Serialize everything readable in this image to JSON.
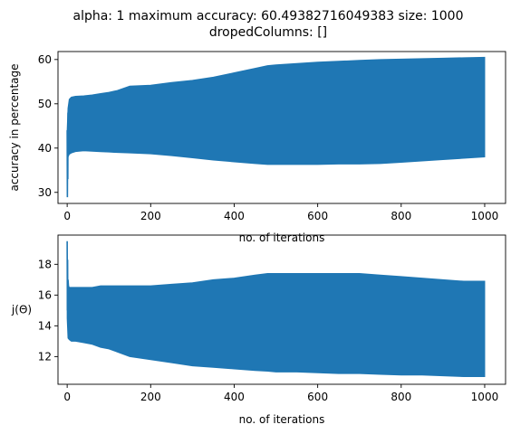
{
  "figure": {
    "title_line1": "alpha: 1 maximum accuracy: 60.49382716049383 size: 1000",
    "title_line2": "dropedColumns: []"
  },
  "chart_data": [
    {
      "type": "line",
      "series_color": "#1f77b4",
      "xlabel": "no. of iterations",
      "ylabel": "accuracy in percentage",
      "xlim": [
        -22,
        1050
      ],
      "ylim": [
        27.5,
        61.8
      ],
      "xticks": [
        0,
        200,
        400,
        600,
        800,
        1000
      ],
      "yticks": [
        30,
        40,
        50,
        60
      ],
      "grid": false,
      "envelope": {
        "x": [
          0,
          2,
          5,
          10,
          20,
          40,
          60,
          80,
          100,
          120,
          150,
          200,
          250,
          300,
          350,
          400,
          450,
          480,
          500,
          550,
          600,
          650,
          700,
          750,
          800,
          850,
          900,
          950,
          1000
        ],
        "upper": [
          44,
          49,
          51,
          51.5,
          51.7,
          51.8,
          52,
          52.3,
          52.6,
          53,
          54,
          54.2,
          54.8,
          55.3,
          56,
          57,
          58,
          58.6,
          58.8,
          59.1,
          59.4,
          59.6,
          59.8,
          60,
          60.1,
          60.2,
          60.3,
          60.4,
          60.5
        ],
        "lower": [
          40,
          38,
          38.6,
          38.9,
          39.2,
          39.4,
          39.3,
          39.2,
          39.1,
          39,
          38.9,
          38.7,
          38.3,
          37.8,
          37.3,
          36.9,
          36.5,
          36.3,
          36.3,
          36.3,
          36.3,
          36.4,
          36.4,
          36.5,
          36.8,
          37.1,
          37.4,
          37.7,
          38
        ]
      },
      "initial_spike": {
        "x": [
          0,
          0.5,
          1,
          1.5,
          2
        ],
        "y": [
          44,
          28.9,
          41,
          33,
          48
        ]
      }
    },
    {
      "type": "line",
      "series_color": "#1f77b4",
      "xlabel": "no. of iterations",
      "ylabel": "j(Θ)",
      "xlim": [
        -22,
        1050
      ],
      "ylim": [
        10.2,
        19.9
      ],
      "xticks": [
        0,
        200,
        400,
        600,
        800,
        1000
      ],
      "yticks": [
        12,
        14,
        16,
        18
      ],
      "grid": false,
      "envelope": {
        "x": [
          0,
          2,
          5,
          10,
          20,
          40,
          60,
          80,
          100,
          120,
          150,
          200,
          250,
          300,
          350,
          400,
          450,
          480,
          500,
          550,
          600,
          650,
          700,
          750,
          800,
          850,
          900,
          950,
          1000
        ],
        "upper": [
          17.5,
          16.7,
          16.5,
          16.5,
          16.5,
          16.5,
          16.5,
          16.6,
          16.6,
          16.6,
          16.6,
          16.6,
          16.7,
          16.8,
          17.0,
          17.1,
          17.3,
          17.4,
          17.4,
          17.4,
          17.4,
          17.4,
          17.4,
          17.3,
          17.2,
          17.1,
          17.0,
          16.9,
          16.9
        ],
        "lower": [
          14.5,
          13.2,
          13.1,
          13.0,
          13.0,
          12.9,
          12.8,
          12.6,
          12.5,
          12.3,
          12.0,
          11.8,
          11.6,
          11.4,
          11.3,
          11.2,
          11.1,
          11.05,
          11.0,
          11.0,
          10.95,
          10.9,
          10.9,
          10.85,
          10.8,
          10.8,
          10.75,
          10.7,
          10.7
        ]
      },
      "initial_spike": {
        "x": [
          0,
          0.5,
          1,
          1.5,
          2,
          3
        ],
        "y": [
          19.5,
          15.0,
          18.3,
          14.7,
          17.0,
          16.6
        ]
      }
    }
  ]
}
